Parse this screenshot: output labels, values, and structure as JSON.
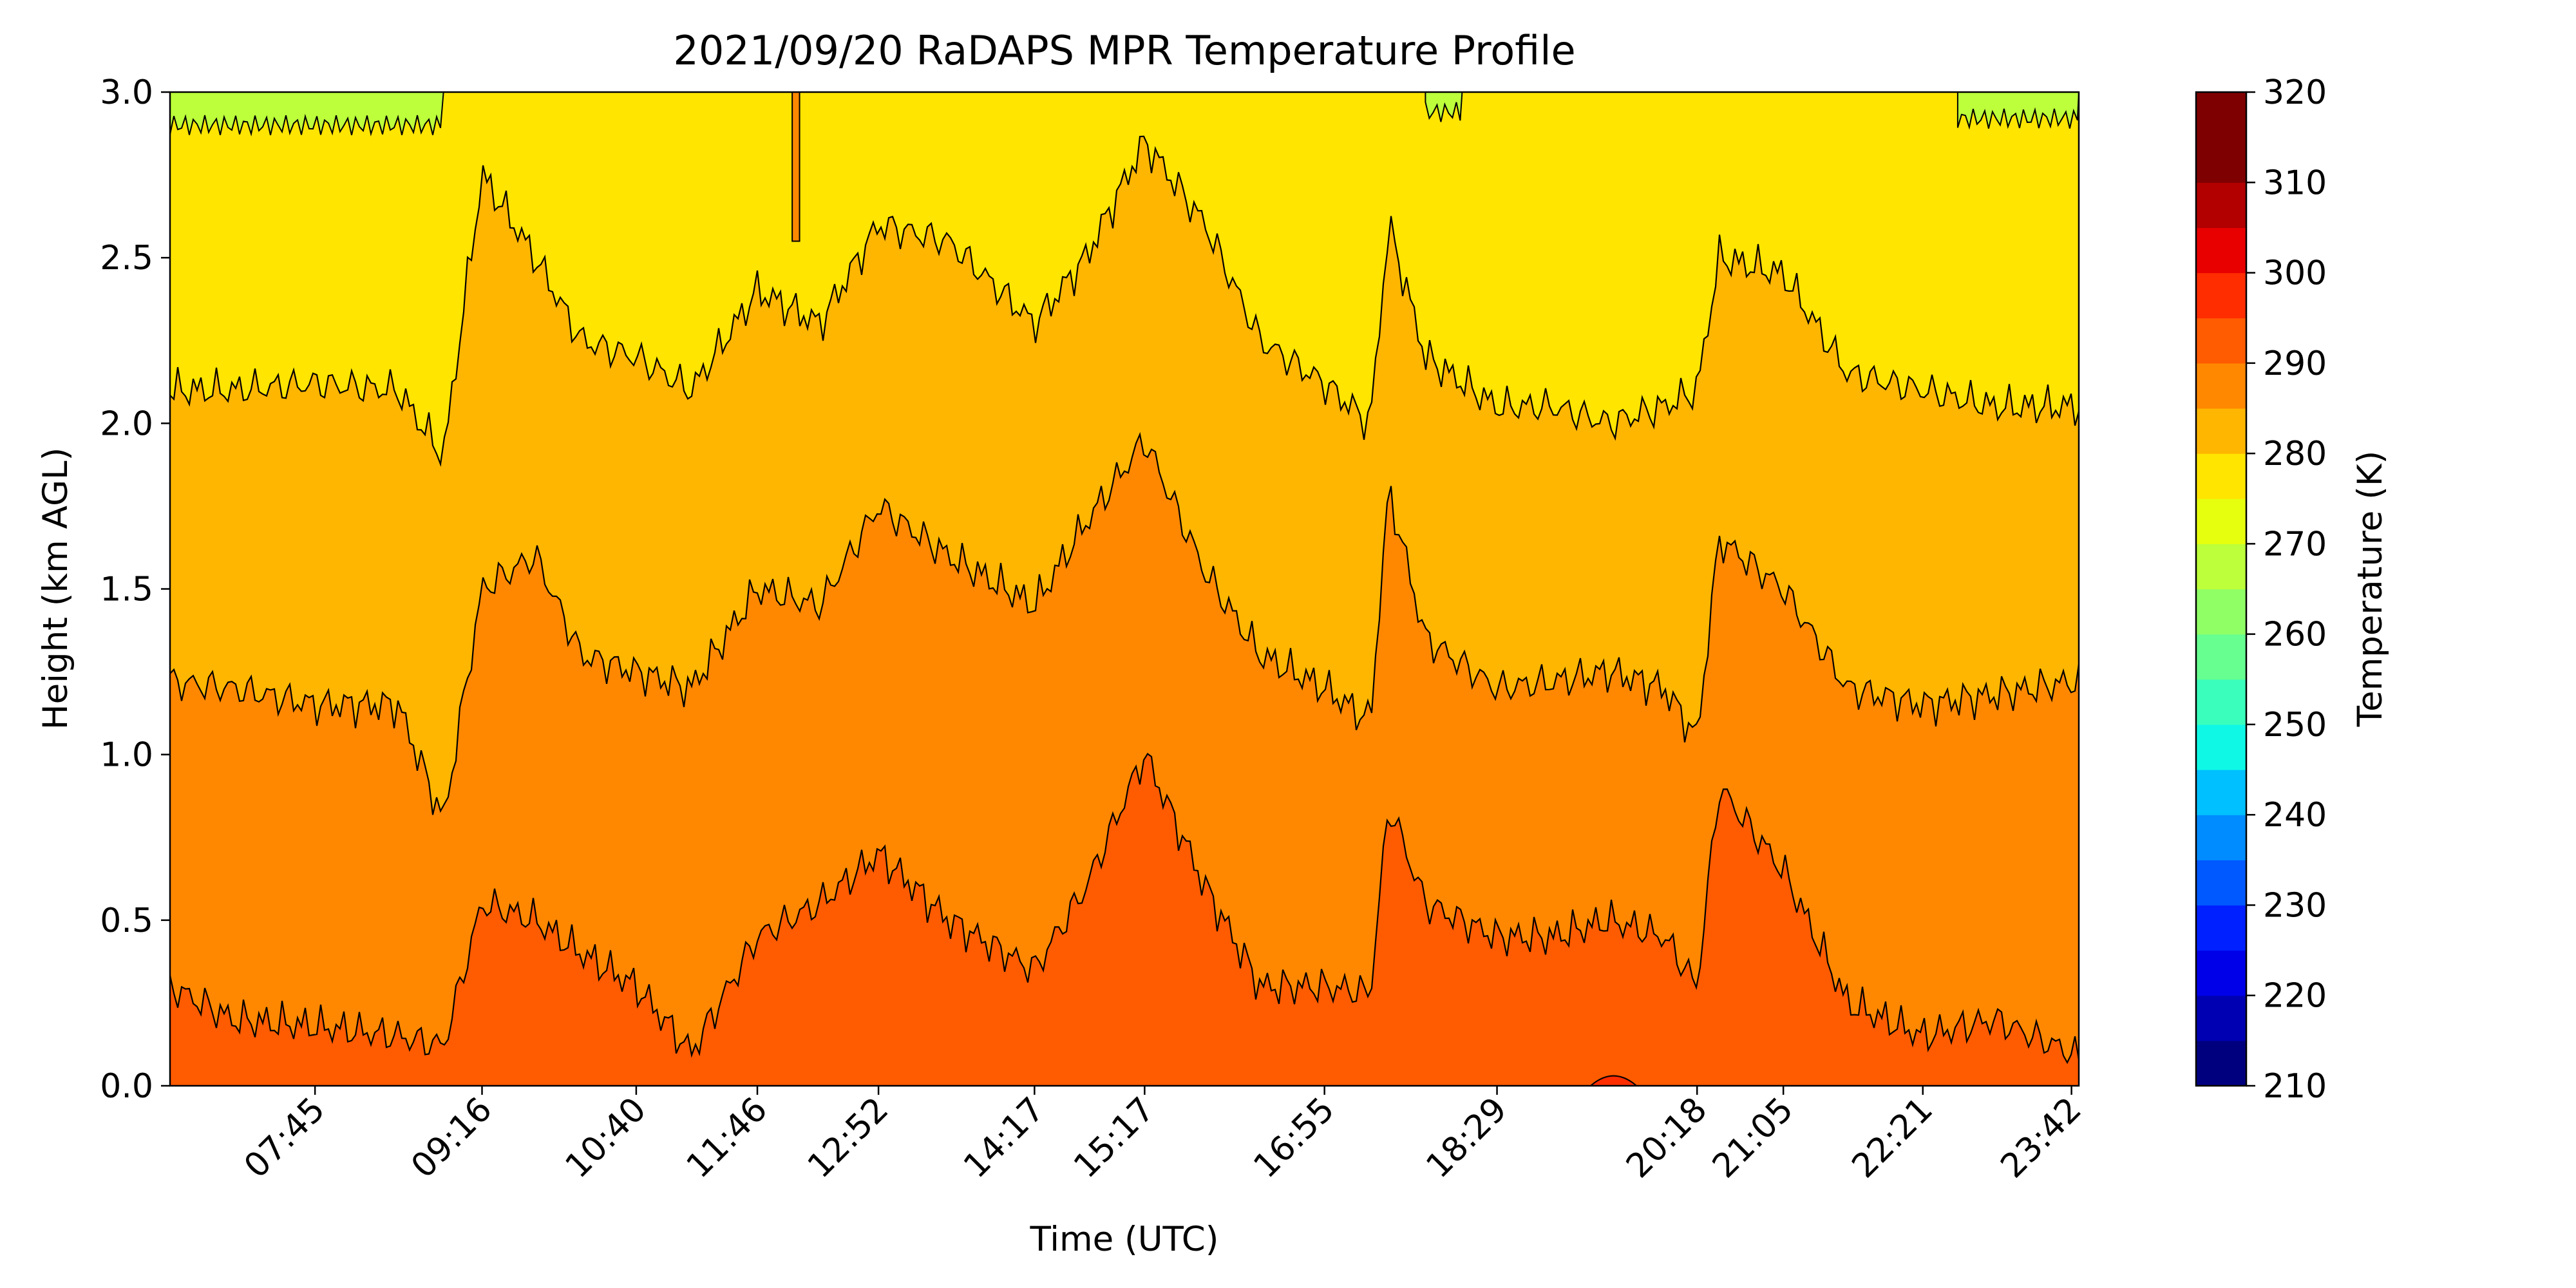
{
  "chart_data": {
    "type": "contourf",
    "title": "2021/09/20 RaDAPS MPR Temperature Profile",
    "xlabel": "Time (UTC)",
    "ylabel": "Height (km AGL)",
    "ylim": [
      0.0,
      3.0
    ],
    "xlim": [
      "06:26",
      "23:46"
    ],
    "y_ticks": [
      "0.0",
      "0.5",
      "1.0",
      "1.5",
      "2.0",
      "2.5",
      "3.0"
    ],
    "x_ticks": [
      "07:45",
      "09:16",
      "10:40",
      "11:46",
      "12:52",
      "14:17",
      "15:17",
      "16:55",
      "18:29",
      "20:18",
      "21:05",
      "22:21",
      "23:42"
    ],
    "colorbar": {
      "label": "Temperature (K)",
      "range": [
        210,
        320
      ],
      "level_step": 5,
      "tick_labels": [
        "210",
        "220",
        "230",
        "240",
        "250",
        "260",
        "270",
        "280",
        "290",
        "300",
        "310",
        "320"
      ],
      "colors": [
        "#00007f",
        "#0000b2",
        "#0000e8",
        "#0020ff",
        "#0058ff",
        "#008cff",
        "#00c0ff",
        "#0ff8e6",
        "#3affbc",
        "#66ff90",
        "#90ff66",
        "#bcff3a",
        "#e6ff0f",
        "#ffe500",
        "#ffb600",
        "#ff8800",
        "#ff5b00",
        "#ff2d00",
        "#e80000",
        "#b20000",
        "#7f0000",
        "#7f0000"
      ]
    },
    "band_colors": {
      "275-280": "#bcff3a",
      "280-285": "#ffe500",
      "285-290": "#ffb600",
      "290-295": "#ff8800",
      "295-300": "#ff5b00",
      "300-305": "#ff2d00"
    },
    "contour_levels_K": [
      280,
      285,
      290,
      295
    ],
    "isotherm_height_km": {
      "time": [
        "06:26",
        "07:00",
        "07:45",
        "08:30",
        "08:55",
        "09:16",
        "09:45",
        "10:10",
        "10:40",
        "11:10",
        "11:46",
        "12:20",
        "12:52",
        "13:30",
        "14:17",
        "14:45",
        "15:17",
        "15:50",
        "16:20",
        "16:55",
        "17:20",
        "17:30",
        "17:50",
        "18:29",
        "19:00",
        "19:30",
        "20:00",
        "20:18",
        "20:30",
        "21:05",
        "21:40",
        "22:21",
        "23:00",
        "23:42",
        "23:46"
      ],
      "280K": [
        2.1,
        2.1,
        2.12,
        2.1,
        1.9,
        2.75,
        2.5,
        2.25,
        2.2,
        2.1,
        2.4,
        2.3,
        2.6,
        2.55,
        2.3,
        2.5,
        2.85,
        2.6,
        2.25,
        2.12,
        2.0,
        2.6,
        2.2,
        2.05,
        2.05,
        2.0,
        2.05,
        2.1,
        2.5,
        2.45,
        2.15,
        2.1,
        2.05,
        2.05,
        2.05
      ],
      "285K": [
        1.22,
        1.2,
        1.15,
        1.15,
        0.8,
        1.5,
        1.6,
        1.3,
        1.25,
        1.2,
        1.5,
        1.45,
        1.75,
        1.6,
        1.45,
        1.7,
        1.95,
        1.55,
        1.3,
        1.2,
        1.1,
        1.8,
        1.35,
        1.2,
        1.22,
        1.25,
        1.2,
        1.05,
        1.65,
        1.5,
        1.2,
        1.15,
        1.18,
        1.22,
        1.22
      ],
      "290K": [
        0.3,
        0.2,
        0.18,
        0.15,
        0.12,
        0.55,
        0.5,
        0.4,
        0.3,
        0.1,
        0.45,
        0.55,
        0.7,
        0.5,
        0.35,
        0.6,
        1.0,
        0.6,
        0.3,
        0.3,
        0.28,
        0.85,
        0.55,
        0.45,
        0.45,
        0.5,
        0.45,
        0.3,
        0.9,
        0.65,
        0.25,
        0.15,
        0.2,
        0.1,
        0.08
      ]
    }
  }
}
